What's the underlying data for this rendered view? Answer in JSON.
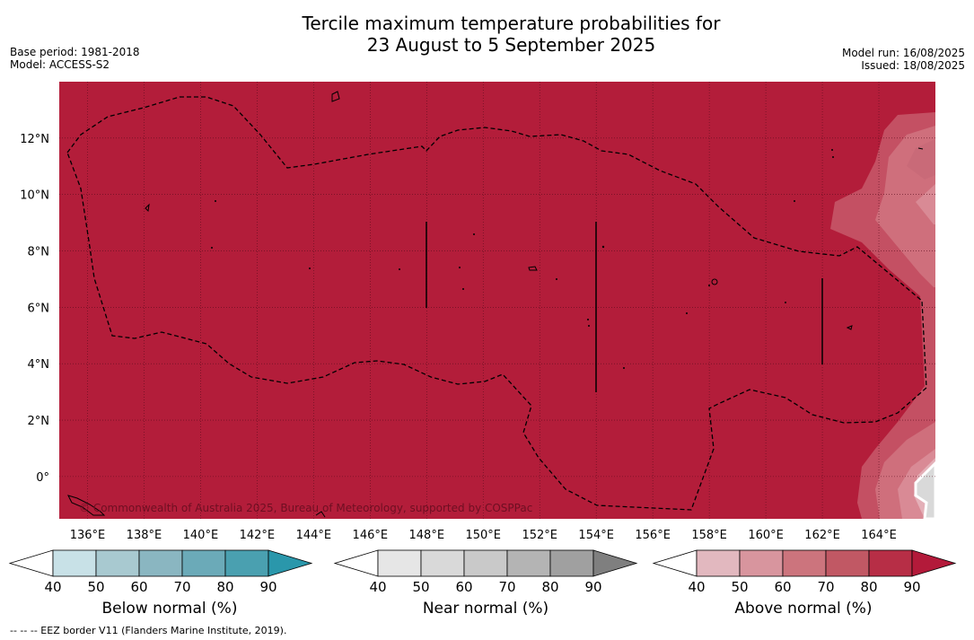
{
  "title": {
    "line1": "Tercile maximum temperature probabilities for",
    "line2": "23 August to 5 September 2025"
  },
  "meta_left": {
    "base_period": "Base period: 1981-2018",
    "model": "Model: ACCESS-S2"
  },
  "meta_right": {
    "model_run": "Model run: 16/08/2025",
    "issued": "Issued: 18/08/2025"
  },
  "map": {
    "background_color": "#b31d3a",
    "lon_range": [
      135,
      166
    ],
    "lat_range": [
      -1.5,
      14
    ],
    "lon_ticks": [
      "136°E",
      "138°E",
      "140°E",
      "142°E",
      "144°E",
      "146°E",
      "148°E",
      "150°E",
      "152°E",
      "154°E",
      "156°E",
      "158°E",
      "160°E",
      "162°E",
      "164°E"
    ],
    "lat_ticks": [
      "0°",
      "2°N",
      "4°N",
      "6°N",
      "8°N",
      "10°N",
      "12°N"
    ],
    "copyright": "© Commonwealth of Australia 2025, Bureau of Meteorology, supported by COSPPac"
  },
  "colorbars": [
    {
      "name": "below",
      "label": "Below normal (%)",
      "ticks": [
        "40",
        "50",
        "60",
        "70",
        "80",
        "90"
      ],
      "colors": [
        "#ffffff",
        "#c8e1e7",
        "#a8c9d0",
        "#8ab6c1",
        "#6baab8",
        "#4aa0b0",
        "#2a97ab"
      ]
    },
    {
      "name": "near",
      "label": "Near normal (%)",
      "ticks": [
        "40",
        "50",
        "60",
        "70",
        "80",
        "90"
      ],
      "colors": [
        "#ffffff",
        "#e6e6e6",
        "#d9d9d9",
        "#c9c9c9",
        "#b4b4b4",
        "#a0a0a0",
        "#7f7f7f"
      ]
    },
    {
      "name": "above",
      "label": "Above normal (%)",
      "ticks": [
        "40",
        "50",
        "60",
        "70",
        "80",
        "90"
      ],
      "colors": [
        "#ffffff",
        "#e2b8bf",
        "#d8959e",
        "#cc747d",
        "#c15864",
        "#b72e46",
        "#b31a3a"
      ]
    }
  ],
  "footnote": "--  --  -- EEZ border V11 (Flanders Marine Institute, 2019)."
}
